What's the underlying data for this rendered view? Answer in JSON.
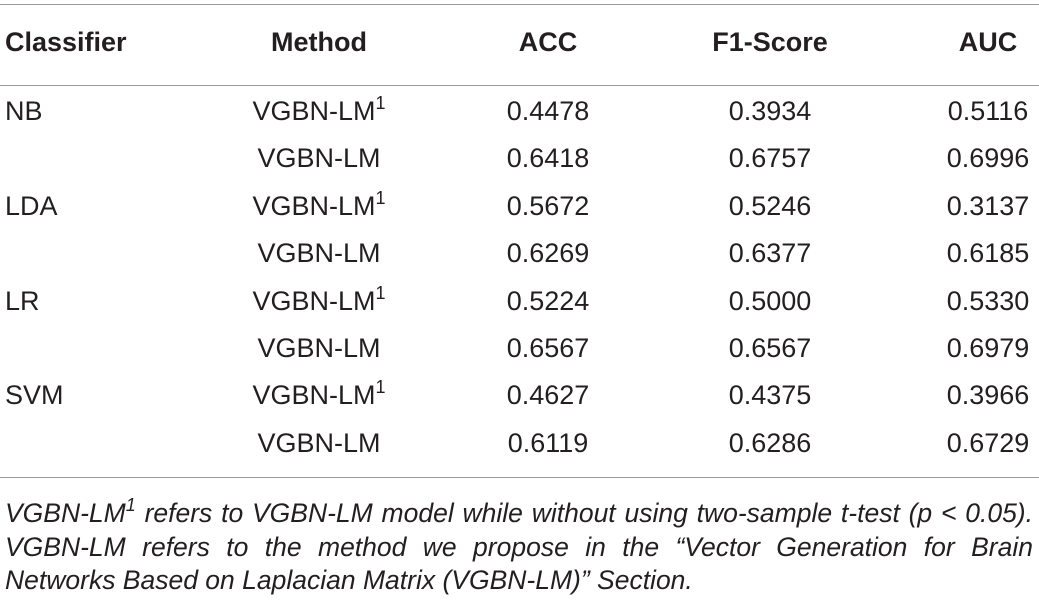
{
  "table": {
    "header": [
      "Classifier",
      "Method",
      "ACC",
      "F1-Score",
      "AUC"
    ],
    "rows": [
      {
        "classifier": "NB",
        "method": "VGBN-LM",
        "note": "1",
        "acc": "0.4478",
        "f1": "0.3934",
        "auc": "0.5116"
      },
      {
        "method": "VGBN-LM",
        "acc": "0.6418",
        "f1": "0.6757",
        "auc": "0.6996"
      },
      {
        "classifier": "LDA",
        "method": "VGBN-LM",
        "note": "1",
        "acc": "0.5672",
        "f1": "0.5246",
        "auc": "0.3137"
      },
      {
        "method": "VGBN-LM",
        "acc": "0.6269",
        "f1": "0.6377",
        "auc": "0.6185"
      },
      {
        "classifier": "LR",
        "method": "VGBN-LM",
        "note": "1",
        "acc": "0.5224",
        "f1": "0.5000",
        "auc": "0.5330"
      },
      {
        "method": "VGBN-LM",
        "acc": "0.6567",
        "f1": "0.6567",
        "auc": "0.6979"
      },
      {
        "classifier": "SVM",
        "method": "VGBN-LM",
        "note": "1",
        "acc": "0.4627",
        "f1": "0.4375",
        "auc": "0.3966"
      },
      {
        "method": "VGBN-LM",
        "acc": "0.6119",
        "f1": "0.6286",
        "auc": "0.6729"
      }
    ],
    "footnote": {
      "term": "VGBN-LM",
      "marker": "1",
      "text": " refers to VGBN-LM model while without using two-sample t-test (p < 0.05). VGBN-LM refers to the method we propose in the “Vector Generation for Brain Networks Based on Laplacian Matrix (VGBN-LM)” Section."
    }
  }
}
